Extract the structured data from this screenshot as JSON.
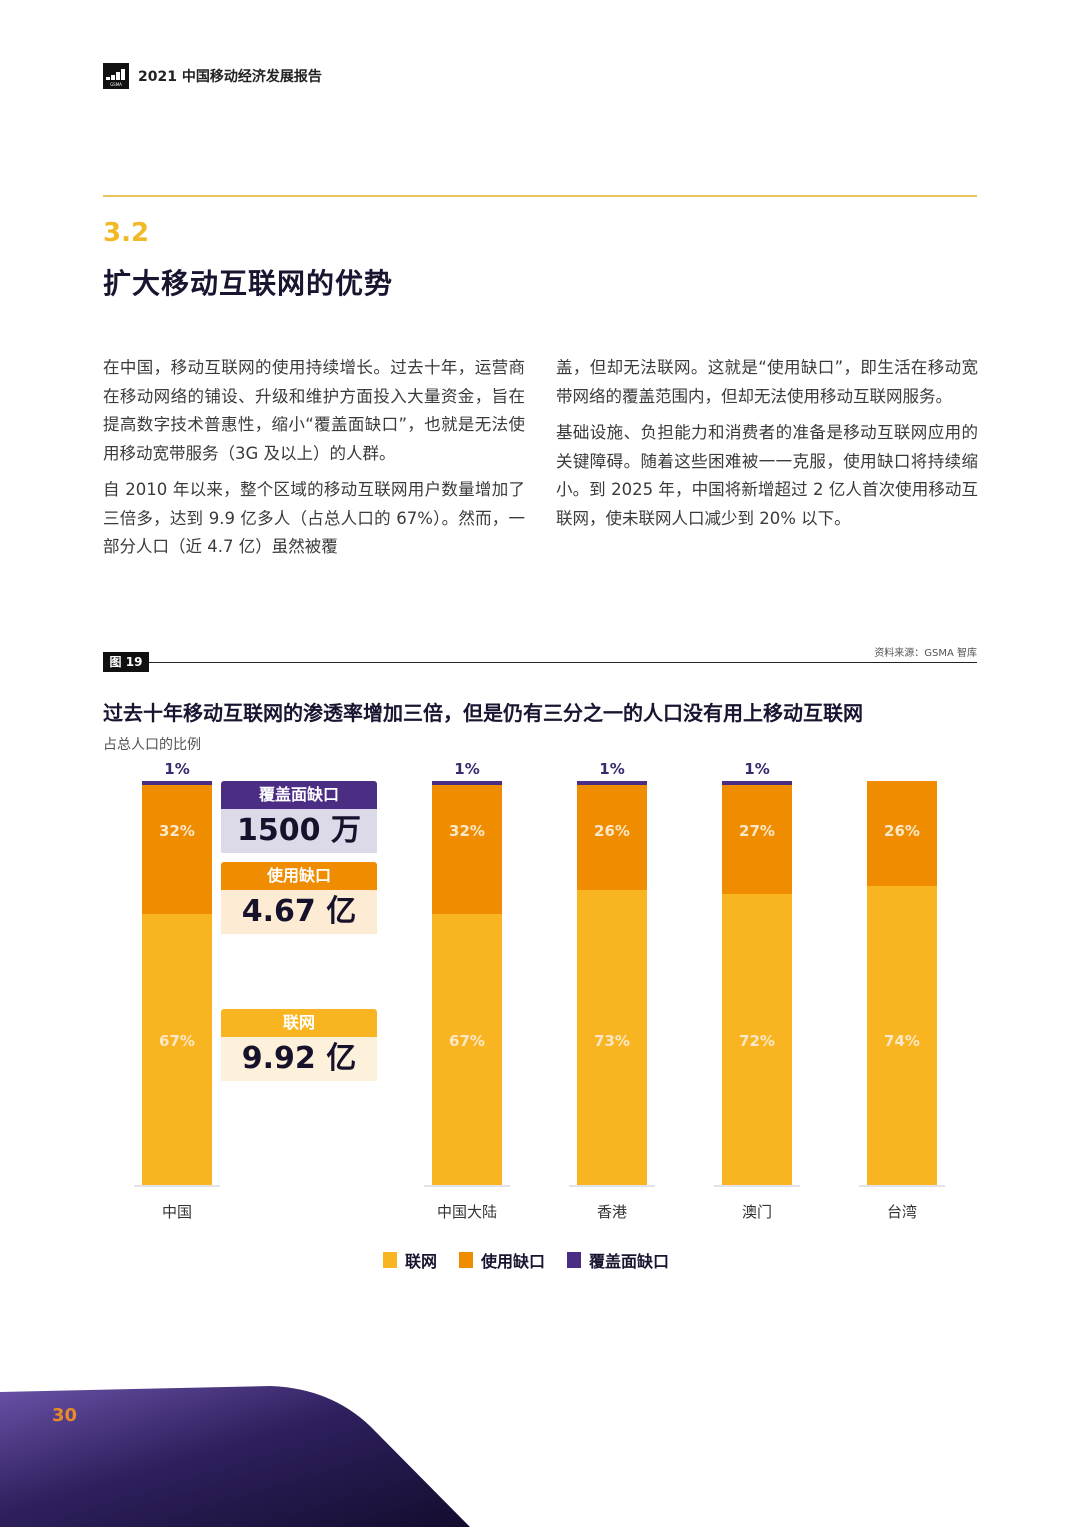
{
  "header": {
    "logo_text": "GSMA",
    "report_title": "2021 中国移动经济发展报告"
  },
  "section": {
    "number": "3.2",
    "title": "扩大移动互联网的优势"
  },
  "body": {
    "left": [
      "在中国，移动互联网的使用持续增长。过去十年，运营商在移动网络的铺设、升级和维护方面投入大量资金，旨在提高数字技术普惠性，缩小“覆盖面缺口”，也就是无法使用移动宽带服务（3G 及以上）的人群。",
      "自 2010 年以来，整个区域的移动互联网用户数量增加了三倍多，达到 9.9 亿多人（占总人口的 67%）。然而，一部分人口（近 4.7 亿）虽然被覆"
    ],
    "right": [
      "盖，但却无法联网。这就是“使用缺口”，即生活在移动宽带网络的覆盖范围内，但却无法使用移动互联网服务。",
      "基础设施、负担能力和消费者的准备是移动互联网应用的关键障碍。随着这些困难被一一克服，使用缺口将持续缩小。到 2025 年，中国将新增超过 2 亿人首次使用移动互联网，使未联网人口减少到 20% 以下。"
    ]
  },
  "figure": {
    "tag": "图 19",
    "source": "资料来源：GSMA 智库"
  },
  "callouts": [
    {
      "label": "覆盖面缺口",
      "value": "1500 万"
    },
    {
      "label": "使用缺口",
      "value": "4.67 亿"
    },
    {
      "label": "联网",
      "value": "9.92 亿"
    }
  ],
  "colors": {
    "connected": "#f9b521",
    "usage_gap": "#f08c00",
    "coverage_gap": "#4b2d83"
  },
  "chart_data": {
    "type": "bar",
    "stacked": true,
    "title": "过去十年移动互联网的渗透率增加三倍，但是仍有三分之一的人口没有用上移动互联网",
    "ylabel": "占总人口的比例",
    "xlabel": "",
    "ylim": [
      0,
      100
    ],
    "categories": [
      "中国",
      "中国大陆",
      "香港",
      "澳门",
      "台湾"
    ],
    "series": [
      {
        "name": "联网",
        "values": [
          67,
          67,
          73,
          72,
          74
        ],
        "labels": [
          "67%",
          "67%",
          "73%",
          "72%",
          "74%"
        ]
      },
      {
        "name": "使用缺口",
        "values": [
          32,
          32,
          26,
          27,
          26
        ],
        "labels": [
          "32%",
          "32%",
          "26%",
          "27%",
          "26%"
        ]
      },
      {
        "name": "覆盖面缺口",
        "values": [
          1,
          1,
          1,
          1,
          0
        ],
        "labels": [
          "1%",
          "1%",
          "1%",
          "1%",
          ""
        ]
      }
    ],
    "legend": [
      "联网",
      "使用缺口",
      "覆盖面缺口"
    ],
    "legend_position": "bottom",
    "grid": false
  },
  "footer": {
    "page_number": "30"
  }
}
